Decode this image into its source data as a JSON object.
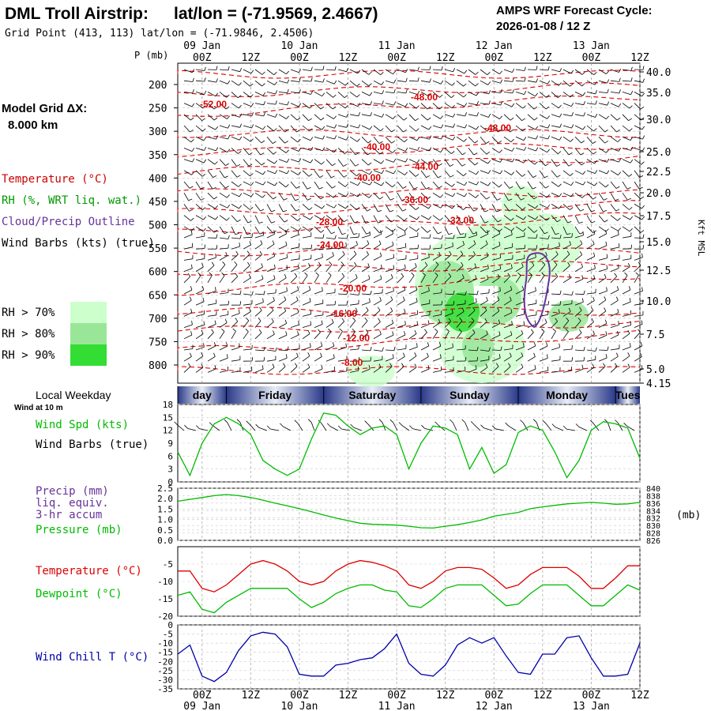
{
  "header": {
    "station": "DML Troll Airstrip:",
    "latlon": "lat/lon = (-71.9569, 2.4667)",
    "grid_point": "Grid Point (413, 113) lat/lon = (-71.9846, 2.4506)",
    "cycle_label": "AMPS WRF Forecast Cycle:",
    "cycle_value": "2026-01-08 / 12  Z"
  },
  "time_axis": {
    "ticks": [
      "00Z",
      "12Z",
      "00Z",
      "12Z",
      "00Z",
      "12Z",
      "00Z",
      "12Z",
      "00Z",
      "12Z"
    ],
    "dates": [
      {
        "after_tick": 0,
        "label": "09 Jan"
      },
      {
        "after_tick": 2,
        "label": "10 Jan"
      },
      {
        "after_tick": 4,
        "label": "11 Jan"
      },
      {
        "after_tick": 6,
        "label": "12 Jan"
      },
      {
        "after_tick": 8,
        "label": "13 Jan"
      }
    ],
    "weekdays": [
      "day",
      "Friday",
      "Saturday",
      "Sunday",
      "Monday",
      "Tues"
    ]
  },
  "profile_panel": {
    "p_axis_label": "P (mb)",
    "right_axis_label": "Kft MSL",
    "p_ticks": [
      "200",
      "250",
      "300",
      "350",
      "400",
      "450",
      "500",
      "550",
      "600",
      "650",
      "700",
      "750",
      "800"
    ],
    "kft_ticks": [
      "40.0",
      "35.0",
      "30.0",
      "25.0",
      "22.5",
      "20.0",
      "17.5",
      "15.0",
      "12.5",
      "10.0",
      "7.5",
      "5.0",
      "4.15"
    ],
    "temperature_contours": [
      "-52.00",
      "-48.00",
      "-48.00",
      "-44.00",
      "-40.00",
      "-36.00",
      "-32.00",
      "-28.00",
      "-24.00",
      "-20.00",
      "-16.00",
      "-12.00",
      "-8.00"
    ]
  },
  "left_legend": {
    "grid_dx_label": "Model Grid ΔX:",
    "grid_dx_value": "8.000 km",
    "items": [
      {
        "text": "Temperature (°C)",
        "color": "#cc0000"
      },
      {
        "text": "RH (%, WRT liq. wat.)",
        "color": "#009900"
      },
      {
        "text": "Cloud/Precip Outline",
        "color": "#663399"
      },
      {
        "text": "Wind Barbs (kts) (true)",
        "color": "#000000"
      }
    ],
    "rh_levels": [
      {
        "text": "RH > 70%",
        "color": "#ccffcc"
      },
      {
        "text": "RH > 80%",
        "color": "#99e699"
      },
      {
        "text": "RH > 90%",
        "color": "#33dd33"
      }
    ]
  },
  "wind_panel": {
    "local_weekday": "Local Weekday",
    "wind_height": "Wind at 10 m",
    "label_speed": "Wind Spd (kts)",
    "label_barbs": "Wind Barbs (true)",
    "y_ticks": [
      "0",
      "3",
      "6",
      "9",
      "12",
      "15",
      "18"
    ],
    "speed_color": "#00bb00"
  },
  "pressure_panel": {
    "label_precip_1": "Precip (mm)",
    "label_precip_2": "liq. equiv.",
    "label_precip_3": "3-hr accum",
    "label_pressure": "Pressure (mb)",
    "unit": "(mb)",
    "left_ticks": [
      "0.0",
      "0.5",
      "1.0",
      "1.5",
      "2.0",
      "2.5"
    ],
    "right_ticks": [
      "826",
      "828",
      "830",
      "832",
      "834",
      "836",
      "838",
      "840"
    ],
    "precip_color": "#663399",
    "pressure_color": "#00bb00"
  },
  "temp_panel": {
    "label_temp": "Temperature (°C)",
    "label_dew": "Dewpoint (°C)",
    "y_ticks": [
      "-20",
      "-15",
      "-10",
      "-5"
    ],
    "temp_color": "#dd0000",
    "dew_color": "#00bb00"
  },
  "chill_panel": {
    "label": "Wind Chill T (°C)",
    "y_ticks": [
      "-35",
      "-30",
      "-25",
      "-20",
      "-15",
      "-10",
      "-5",
      "0"
    ],
    "color": "#0000aa"
  },
  "chart_data": [
    {
      "type": "line",
      "title": "Wind Spd (kts)",
      "x_hours_from": "09 Jan 00Z",
      "x": [
        -6,
        -3,
        0,
        3,
        6,
        9,
        12,
        15,
        18,
        21,
        24,
        27,
        30,
        33,
        36,
        39,
        42,
        45,
        48,
        51,
        54,
        57,
        60,
        63,
        66,
        69,
        72,
        75,
        78,
        81,
        84,
        87,
        90,
        93,
        96,
        99,
        102,
        105,
        108
      ],
      "series": [
        {
          "name": "Wind Spd (kts)",
          "values": [
            7,
            1.5,
            9,
            13.5,
            15,
            13.5,
            11,
            5,
            3,
            1.5,
            3,
            10,
            16,
            15.5,
            13,
            11,
            12.5,
            13,
            11,
            3,
            9,
            13,
            12.5,
            11,
            3,
            8,
            2,
            4,
            11.5,
            13,
            12,
            7,
            1,
            5,
            12,
            14,
            13.5,
            12.5,
            5.5
          ]
        }
      ],
      "ylim": [
        0,
        18
      ]
    },
    {
      "type": "line",
      "title": "Pressure (mb)",
      "x": [
        -6,
        -3,
        0,
        3,
        6,
        9,
        12,
        15,
        18,
        21,
        24,
        27,
        30,
        33,
        36,
        39,
        42,
        45,
        48,
        51,
        54,
        57,
        60,
        63,
        66,
        69,
        72,
        75,
        78,
        81,
        84,
        87,
        90,
        93,
        96,
        99,
        102,
        105,
        108
      ],
      "series": [
        {
          "name": "Pressure (mb)",
          "values": [
            836.5,
            837,
            837.5,
            838,
            838.3,
            838,
            837.5,
            836.8,
            836,
            835.3,
            834.5,
            833.7,
            832.8,
            832,
            831.3,
            830.6,
            830.3,
            830.2,
            830.1,
            829.8,
            829.4,
            829.3,
            829.8,
            830.2,
            830.8,
            831.5,
            832.5,
            833,
            833.5,
            834.5,
            835,
            835.4,
            835.8,
            836,
            836.2,
            836,
            835.7,
            835.8,
            836.2
          ]
        }
      ],
      "precip": [],
      "ylim_left": [
        0,
        2.5
      ],
      "ylim_right": [
        826,
        840
      ]
    },
    {
      "type": "line",
      "title": "Temperature / Dewpoint (°C)",
      "x": [
        -6,
        -3,
        0,
        3,
        6,
        9,
        12,
        15,
        18,
        21,
        24,
        27,
        30,
        33,
        36,
        39,
        42,
        45,
        48,
        51,
        54,
        57,
        60,
        63,
        66,
        69,
        72,
        75,
        78,
        81,
        84,
        87,
        90,
        93,
        96,
        99,
        102,
        105,
        108
      ],
      "series": [
        {
          "name": "Temperature (°C)",
          "values": [
            -7,
            -7,
            -12,
            -13,
            -11,
            -8,
            -5,
            -4,
            -5,
            -7,
            -10,
            -11,
            -10,
            -7,
            -5,
            -4,
            -4.5,
            -5.5,
            -7,
            -11,
            -12,
            -10,
            -7,
            -6,
            -6,
            -6.5,
            -9,
            -12,
            -11,
            -8,
            -6,
            -6,
            -6,
            -8.5,
            -12,
            -12,
            -9,
            -5.5,
            -5.5
          ]
        },
        {
          "name": "Dewpoint (°C)",
          "values": [
            -14,
            -13,
            -18,
            -19,
            -16,
            -14,
            -12,
            -12,
            -12,
            -12,
            -15,
            -17.5,
            -16,
            -13.5,
            -12,
            -11,
            -11,
            -12.5,
            -13,
            -17,
            -17.5,
            -15,
            -12,
            -11,
            -11,
            -11,
            -14,
            -17,
            -16.5,
            -13.5,
            -11,
            -11,
            -11,
            -14,
            -17,
            -17,
            -14,
            -11,
            -12.5
          ]
        }
      ],
      "ylim": [
        -20,
        0
      ]
    },
    {
      "type": "line",
      "title": "Wind Chill T (°C)",
      "x": [
        -6,
        -3,
        0,
        3,
        6,
        9,
        12,
        15,
        18,
        21,
        24,
        27,
        30,
        33,
        36,
        39,
        42,
        45,
        48,
        51,
        54,
        57,
        60,
        63,
        66,
        69,
        72,
        75,
        78,
        81,
        84,
        87,
        90,
        93,
        96,
        99,
        102,
        105,
        108
      ],
      "series": [
        {
          "name": "Wind Chill T (°C)",
          "values": [
            -16,
            -11,
            -28,
            -31,
            -26,
            -14,
            -6,
            -4,
            -5,
            -12,
            -27,
            -28,
            -28,
            -22,
            -21,
            -19,
            -18,
            -13,
            -5,
            -21,
            -27,
            -28,
            -22,
            -11,
            -7,
            -10,
            -7,
            -17,
            -26,
            -27,
            -16,
            -16,
            -7,
            -6,
            -18,
            -28,
            -28,
            -27,
            -10
          ]
        }
      ],
      "ylim": [
        -35,
        0
      ]
    }
  ]
}
